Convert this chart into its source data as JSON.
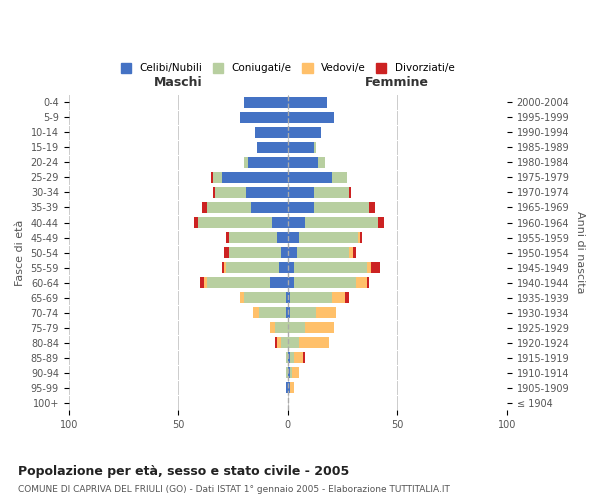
{
  "age_groups": [
    "100+",
    "95-99",
    "90-94",
    "85-89",
    "80-84",
    "75-79",
    "70-74",
    "65-69",
    "60-64",
    "55-59",
    "50-54",
    "45-49",
    "40-44",
    "35-39",
    "30-34",
    "25-29",
    "20-24",
    "15-19",
    "10-14",
    "5-9",
    "0-4"
  ],
  "birth_years": [
    "≤ 1904",
    "1905-1909",
    "1910-1914",
    "1915-1919",
    "1920-1924",
    "1925-1929",
    "1930-1934",
    "1935-1939",
    "1940-1944",
    "1945-1949",
    "1950-1954",
    "1955-1959",
    "1960-1964",
    "1965-1969",
    "1970-1974",
    "1975-1979",
    "1980-1984",
    "1985-1989",
    "1990-1994",
    "1995-1999",
    "2000-2004"
  ],
  "maschi": {
    "celibi": [
      0,
      1,
      0,
      0,
      0,
      0,
      1,
      1,
      8,
      4,
      3,
      5,
      7,
      17,
      19,
      30,
      18,
      14,
      15,
      22,
      20
    ],
    "coniugati": [
      0,
      0,
      1,
      1,
      3,
      6,
      12,
      19,
      29,
      24,
      24,
      22,
      34,
      20,
      14,
      4,
      2,
      0,
      0,
      0,
      0
    ],
    "vedovi": [
      0,
      0,
      0,
      0,
      2,
      2,
      3,
      2,
      1,
      1,
      0,
      0,
      0,
      0,
      0,
      0,
      0,
      0,
      0,
      0,
      0
    ],
    "divorziati": [
      0,
      0,
      0,
      0,
      1,
      0,
      0,
      0,
      2,
      1,
      2,
      1,
      2,
      2,
      1,
      1,
      0,
      0,
      0,
      0,
      0
    ]
  },
  "femmine": {
    "nubili": [
      0,
      1,
      1,
      1,
      0,
      0,
      1,
      1,
      3,
      3,
      4,
      5,
      8,
      12,
      12,
      20,
      14,
      12,
      15,
      21,
      18
    ],
    "coniugate": [
      0,
      0,
      1,
      2,
      5,
      8,
      12,
      19,
      28,
      33,
      24,
      27,
      33,
      25,
      16,
      7,
      3,
      1,
      0,
      0,
      0
    ],
    "vedove": [
      0,
      2,
      3,
      4,
      14,
      13,
      9,
      6,
      5,
      2,
      2,
      1,
      0,
      0,
      0,
      0,
      0,
      0,
      0,
      0,
      0
    ],
    "divorziate": [
      0,
      0,
      0,
      1,
      0,
      0,
      0,
      2,
      1,
      4,
      1,
      1,
      3,
      3,
      1,
      0,
      0,
      0,
      0,
      0,
      0
    ]
  },
  "colors": {
    "celibi_nubili": "#4472c4",
    "coniugati": "#b8cfa0",
    "vedovi": "#ffc06a",
    "divorziati": "#cc2222"
  },
  "xlim": 100,
  "title": "Popolazione per età, sesso e stato civile - 2005",
  "subtitle": "COMUNE DI CAPRIVA DEL FRIULI (GO) - Dati ISTAT 1° gennaio 2005 - Elaborazione TUTTITALIA.IT",
  "ylabel_left": "Fasce di età",
  "ylabel_right": "Anni di nascita",
  "xlabel_left": "Maschi",
  "xlabel_right": "Femmine",
  "legend_labels": [
    "Celibi/Nubili",
    "Coniugati/e",
    "Vedovi/e",
    "Divorziati/e"
  ],
  "background_color": "#ffffff",
  "grid_color": "#cccccc"
}
